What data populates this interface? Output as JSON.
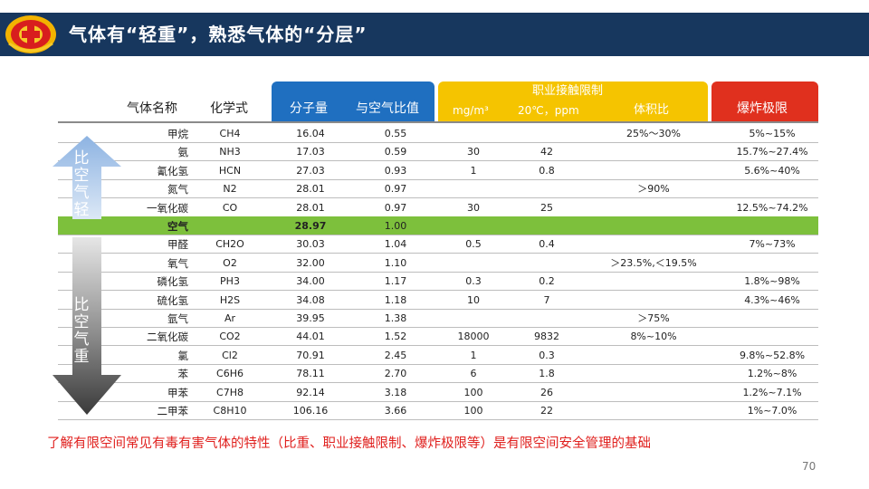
{
  "slide": {
    "title": "气体有“轻重”，熟悉气体的“分层”",
    "footnote": "了解有限空间常见有毒有害气体的特性（比重、职业接触限制、爆炸极限等）是有限空间安全管理的基础",
    "page_number": "70"
  },
  "arrows": {
    "up_label": "比空气轻",
    "down_label": "比空气重"
  },
  "table": {
    "headers": {
      "name": "气体名称",
      "formula": "化学式",
      "mw": "分子量",
      "ratio": "与空气比值",
      "limit_group": "职业接触限制",
      "mg": "mg/m³",
      "ppm": "20℃，ppm",
      "vol": "体积比",
      "explosion": "爆炸极限"
    },
    "rows": [
      {
        "name": "甲烷",
        "formula": "CH4",
        "mw": "16.04",
        "ratio": "0.55",
        "mg": "",
        "ppm": "",
        "vol": "25%～30%",
        "exp": "5%~15%"
      },
      {
        "name": "氨",
        "formula": "NH3",
        "mw": "17.03",
        "ratio": "0.59",
        "mg": "30",
        "ppm": "42",
        "vol": "",
        "exp": "15.7%~27.4%"
      },
      {
        "name": "氰化氢",
        "formula": "HCN",
        "mw": "27.03",
        "ratio": "0.93",
        "mg": "1",
        "ppm": "0.8",
        "vol": "",
        "exp": "5.6%~40%"
      },
      {
        "name": "氮气",
        "formula": "N2",
        "mw": "28.01",
        "ratio": "0.97",
        "mg": "",
        "ppm": "",
        "vol": "＞90%",
        "exp": ""
      },
      {
        "name": "一氧化碳",
        "formula": "CO",
        "mw": "28.01",
        "ratio": "0.97",
        "mg": "30",
        "ppm": "25",
        "vol": "",
        "exp": "12.5%~74.2%"
      },
      {
        "name": "空气",
        "formula": "",
        "mw": "28.97",
        "ratio": "1.00",
        "mg": "",
        "ppm": "",
        "vol": "",
        "exp": ""
      },
      {
        "name": "甲醛",
        "formula": "CH2O",
        "mw": "30.03",
        "ratio": "1.04",
        "mg": "0.5",
        "ppm": "0.4",
        "vol": "",
        "exp": "7%~73%"
      },
      {
        "name": "氧气",
        "formula": "O2",
        "mw": "32.00",
        "ratio": "1.10",
        "mg": "",
        "ppm": "",
        "vol": "＞23.5%,＜19.5%",
        "exp": ""
      },
      {
        "name": "磷化氢",
        "formula": "PH3",
        "mw": "34.00",
        "ratio": "1.17",
        "mg": "0.3",
        "ppm": "0.2",
        "vol": "",
        "exp": "1.8%~98%"
      },
      {
        "name": "硫化氢",
        "formula": "H2S",
        "mw": "34.08",
        "ratio": "1.18",
        "mg": "10",
        "ppm": "7",
        "vol": "",
        "exp": "4.3%~46%"
      },
      {
        "name": "氩气",
        "formula": "Ar",
        "mw": "39.95",
        "ratio": "1.38",
        "mg": "",
        "ppm": "",
        "vol": "＞75%",
        "exp": ""
      },
      {
        "name": "二氧化碳",
        "formula": "CO2",
        "mw": "44.01",
        "ratio": "1.52",
        "mg": "18000",
        "ppm": "9832",
        "vol": "8%~10%",
        "exp": ""
      },
      {
        "name": "氯",
        "formula": "Cl2",
        "mw": "70.91",
        "ratio": "2.45",
        "mg": "1",
        "ppm": "0.3",
        "vol": "",
        "exp": "9.8%~52.8%"
      },
      {
        "name": "苯",
        "formula": "C6H6",
        "mw": "78.11",
        "ratio": "2.70",
        "mg": "6",
        "ppm": "1.8",
        "vol": "",
        "exp": "1.2%~8%"
      },
      {
        "name": "甲苯",
        "formula": "C7H8",
        "mw": "92.14",
        "ratio": "3.18",
        "mg": "100",
        "ppm": "26",
        "vol": "",
        "exp": "1.2%~7.1%"
      },
      {
        "name": "二甲苯",
        "formula": "C8H10",
        "mw": "106.16",
        "ratio": "3.66",
        "mg": "100",
        "ppm": "22",
        "vol": "",
        "exp": "1%~7.0%"
      }
    ]
  }
}
